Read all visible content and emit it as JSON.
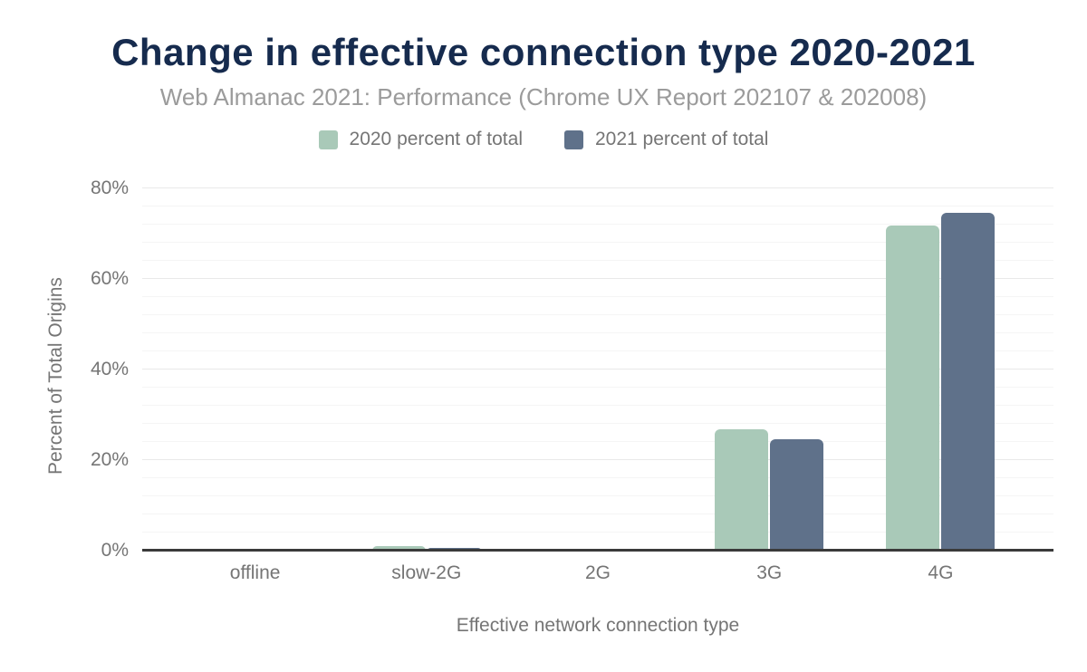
{
  "page": {
    "title": "Change in effective connection type 2020-2021",
    "subtitle": "Web Almanac 2021: Performance (Chrome UX Report 202107 & 202008)"
  },
  "legend": [
    {
      "label": "2020 percent of total",
      "color": "#a9c9b8"
    },
    {
      "label": "2021 percent of total",
      "color": "#5f718a"
    }
  ],
  "colors": {
    "title": "#162b4e",
    "subtitle": "#9b9b9b",
    "axis_text": "#757575",
    "axis_line": "#3a3a3a",
    "gridline_minor": "#f5f5f5",
    "gridline_major": "#e9e9e9",
    "series_2020": "#a9c9b8",
    "series_2021": "#5f718a",
    "background": "#ffffff"
  },
  "chart_data": {
    "type": "bar",
    "title": "Change in effective connection type 2020-2021",
    "subtitle": "Web Almanac 2021: Performance (Chrome UX Report 202107 & 202008)",
    "categories": [
      "offline",
      "slow-2G",
      "2G",
      "3G",
      "4G"
    ],
    "series": [
      {
        "name": "2020 percent of total",
        "color": "#a9c9b8",
        "values": [
          0.0,
          1.1,
          0.5,
          26.8,
          71.8
        ]
      },
      {
        "name": "2021 percent of total",
        "color": "#5f718a",
        "values": [
          0.0,
          0.6,
          0.2,
          24.6,
          74.7
        ]
      }
    ],
    "xlabel": "Effective network connection type",
    "ylabel": "Percent of Total Origins",
    "ylim": [
      0,
      80
    ],
    "yticks": [
      0,
      20,
      40,
      60,
      80
    ],
    "ytick_suffix": "%",
    "minor_grid_step": 4,
    "grid": true,
    "legend_position": "top"
  }
}
